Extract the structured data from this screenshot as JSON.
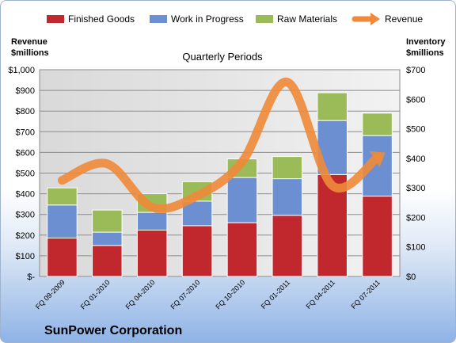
{
  "chart_data": {
    "type": "bar",
    "stacked": true,
    "subtitle": "Quarterly Periods",
    "company": "SunPower Corporation",
    "left_axis_title": [
      "Revenue",
      "$millions"
    ],
    "right_axis_title": [
      "Inventory",
      "$millions"
    ],
    "categories": [
      "FQ 09-2009",
      "FQ 01-2010",
      "FQ 04-2010",
      "FQ 07-2010",
      "FQ 10-2010",
      "FQ 01-2011",
      "FQ 04-2011",
      "FQ 07-2011"
    ],
    "left_ticks": [
      "$-",
      "$100",
      "$200",
      "$300",
      "$400",
      "$500",
      "$600",
      "$700",
      "$800",
      "$900",
      "$1,000"
    ],
    "right_ticks": [
      "$0",
      "$100",
      "$200",
      "$300",
      "$400",
      "$500",
      "$600",
      "$700"
    ],
    "left_ylim": [
      0,
      1000
    ],
    "right_ylim": [
      0,
      700
    ],
    "series": [
      {
        "name": "Finished Goods",
        "axis": "right",
        "color": "#c0282e",
        "values": [
          130,
          105,
          157,
          172,
          182,
          207,
          345,
          272
        ]
      },
      {
        "name": "Work in Progress",
        "axis": "right",
        "color": "#6b8fd0",
        "values": [
          112,
          45,
          60,
          83,
          153,
          124,
          183,
          205
        ]
      },
      {
        "name": "Raw Materials",
        "axis": "right",
        "color": "#9bbb59",
        "values": [
          58,
          75,
          63,
          66,
          63,
          75,
          94,
          76
        ]
      },
      {
        "name": "Revenue",
        "axis": "left",
        "type": "line",
        "color": "#f0893a",
        "values": [
          465,
          545,
          335,
          390,
          555,
          940,
          440,
          575
        ]
      }
    ],
    "legend": "top",
    "grid": true
  }
}
